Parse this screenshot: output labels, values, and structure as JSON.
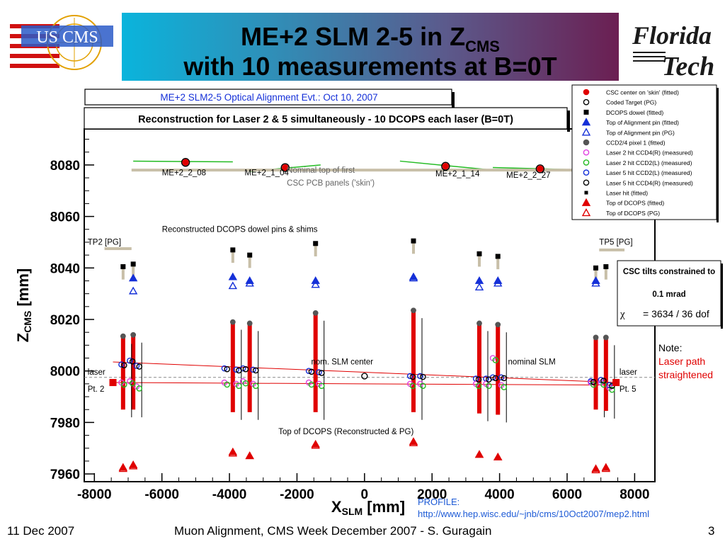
{
  "slide": {
    "title_line1": "ME+2 SLM 2-5 in Z",
    "title_line1_sub": "CMS",
    "title_line2": "with 10 measurements at B=0T",
    "logo_left_text": "US CMS",
    "logo_right_line1": "Florida",
    "logo_right_line2": "Tech",
    "footer_date": "11 Dec 2007",
    "footer_center": "Muon Alignment, CMS Week December 2007  - S. Guragain",
    "footer_page": "3",
    "profile_label": "PROFILE:",
    "profile_url": "http://www.hep.wisc.edu/~jnb/cms/10Oct2007/mep2.html",
    "note_title": "Note:",
    "note_text": "Laser path straightened",
    "colors": {
      "red": "#e00000",
      "blue": "#1530d8",
      "green": "#22bb22",
      "magenta": "#e040e0",
      "tan": "#c8bfa8",
      "black": "#000000"
    }
  },
  "chart_data": {
    "type": "scatter",
    "event_title": "ME+2 SLM2-5 Optical Alignment Evt.:  Oct 10, 2007",
    "subtitle": "Reconstruction for Laser 2 & 5 simultaneously - 10 DCOPS each laser (B=0T)",
    "xlabel": "X",
    "xlabel_sub": "SLM",
    "xlabel_unit": " [mm]",
    "ylabel": "Z",
    "ylabel_sub": "CMS",
    "ylabel_unit": " [mm]",
    "xlim": [
      -8300,
      8600
    ],
    "ylim": [
      7957,
      8094
    ],
    "xticks": [
      -8000,
      -6000,
      -4000,
      -2000,
      0,
      2000,
      4000,
      6000,
      8000
    ],
    "yticks": [
      7960,
      7980,
      8000,
      8020,
      8040,
      8060,
      8080
    ],
    "grid": true,
    "legend_position": "top-right",
    "legend": [
      {
        "label": "CSC center on 'skin' (fitted)",
        "marker": "circle",
        "color": "#e00000",
        "fill": true
      },
      {
        "label": "Coded Target (PG)",
        "marker": "circle",
        "color": "#000000",
        "fill": false
      },
      {
        "label": "DCOPS dowel (fitted)",
        "marker": "square",
        "color": "#000000",
        "fill": true
      },
      {
        "label": "Top of Alignment pin (fitted)",
        "marker": "triangle",
        "color": "#1530d8",
        "fill": true
      },
      {
        "label": "Top of Alignment pin (PG)",
        "marker": "triangle",
        "color": "#1530d8",
        "fill": false
      },
      {
        "label": "CCD2/4 pixel 1 (fitted)",
        "marker": "circle",
        "color": "#555555",
        "fill": true
      },
      {
        "label": "Laser 2 hit CCD4(R) (measured)",
        "marker": "circle",
        "color": "#e040e0",
        "fill": false
      },
      {
        "label": "Laser 2 hit CCD2(L) (measured)",
        "marker": "circle",
        "color": "#22bb22",
        "fill": false
      },
      {
        "label": "Laser 5 hit CCD2(L) (measured)",
        "marker": "circle",
        "color": "#1530d8",
        "fill": false
      },
      {
        "label": "Laser 5 hit CCD4(R) (measured)",
        "marker": "circle",
        "color": "#000000",
        "fill": false
      },
      {
        "label": "Laser hit (fitted)",
        "marker": "smallsquare",
        "color": "#000000",
        "fill": true
      },
      {
        "label": "Top of DCOPS (fitted)",
        "marker": "triangle",
        "color": "#e00000",
        "fill": true
      },
      {
        "label": "Top of DCOPS (PG)",
        "marker": "triangle",
        "color": "#e00000",
        "fill": false
      }
    ],
    "annotations": [
      {
        "text": "ME+2_2_08",
        "x": -6000,
        "y": 8076
      },
      {
        "text": "ME+2_1_04",
        "x": -3550,
        "y": 8076
      },
      {
        "text": "Nominal top of first",
        "x": -2300,
        "y": 8077
      },
      {
        "text": "CSC PCB panels ('skin')",
        "x": -2300,
        "y": 8072
      },
      {
        "text": "ME+2_1_14",
        "x": 2100,
        "y": 8075.5
      },
      {
        "text": "ME+2_2_27",
        "x": 4200,
        "y": 8075
      },
      {
        "text": "Reconstructed DCOPS dowel pins & shims",
        "x": -6000,
        "y": 8054
      },
      {
        "text": "TP2 [PG]",
        "x": -8200,
        "y": 8049
      },
      {
        "text": "TP5 [PG]",
        "x": 6950,
        "y": 8049
      },
      {
        "text": "nom. SLM center",
        "x": -1580,
        "y": 8002.5
      },
      {
        "text": "nominal SLM",
        "x": 4250,
        "y": 8002.5
      },
      {
        "text": "laser",
        "x": -8200,
        "y": 7998.5
      },
      {
        "text": "Pt. 2",
        "x": -8200,
        "y": 7992
      },
      {
        "text": "laser",
        "x": 7550,
        "y": 7998.5
      },
      {
        "text": "Pt. 5",
        "x": 7550,
        "y": 7992
      },
      {
        "text": "Top of DCOPS (Reconstructed & PG)",
        "x": -2550,
        "y": 7975.5
      }
    ],
    "info_box": {
      "line1": "CSC tilts constrained to",
      "line2": "0.1 mrad",
      "chi_label": "χ",
      "chi_value": "= 3634 / 36 dof"
    },
    "csc_centers": [
      {
        "x": -5300,
        "y": 8081
      },
      {
        "x": -2350,
        "y": 8079
      },
      {
        "x": 2400,
        "y": 8079.5
      },
      {
        "x": 5200,
        "y": 8078.5
      }
    ],
    "skin_panels": [
      {
        "x0": -6850,
        "x1": -3900,
        "y0": 8081.5,
        "y1": 8081.2
      },
      {
        "x0": -3400,
        "x1": -1300,
        "y0": 8077.5,
        "y1": 8080
      },
      {
        "x0": 1050,
        "x1": 3800,
        "y0": 8081.5,
        "y1": 8078
      },
      {
        "x0": 3800,
        "x1": 6700,
        "y0": 8079,
        "y1": 8078
      }
    ],
    "dcops": [
      {
        "x": -6850,
        "bar_top": 8014,
        "bar_bottom": 7985,
        "ccd": 8014,
        "dowel": 8041.5,
        "pin": 8036,
        "pin_pg": 8031,
        "top_fit": 7963.5,
        "top_pg": 7963
      },
      {
        "x": -3900,
        "bar_top": 8019,
        "bar_bottom": 7984,
        "ccd": 8019,
        "dowel": 8047,
        "pin": 8036.5,
        "pin_pg": 8033,
        "top_fit": 7968.5,
        "top_pg": 7968
      },
      {
        "x": -3400,
        "bar_top": 8018.5,
        "bar_bottom": 7984,
        "ccd": 8018.5,
        "dowel": 8045,
        "pin": 8035,
        "pin_pg": 8034,
        "top_fit": 7967,
        "top_pg": 7967
      },
      {
        "x": -1450,
        "bar_top": 8022.5,
        "bar_bottom": 7984,
        "ccd": 8022.5,
        "dowel": 8049.5,
        "pin": 8035,
        "pin_pg": 8033.5,
        "top_fit": 7971.5,
        "top_pg": 7971
      },
      {
        "x": 1450,
        "bar_top": 8023.5,
        "bar_bottom": 7984,
        "ccd": 8023.5,
        "dowel": 8050.5,
        "pin": 8036.5,
        "pin_pg": 8036,
        "top_fit": 7972.5,
        "top_pg": 7972
      },
      {
        "x": 3400,
        "bar_top": 8018.5,
        "bar_bottom": 7983.5,
        "ccd": 8018.5,
        "dowel": 8045.5,
        "pin": 8035,
        "pin_pg": 8032.5,
        "top_fit": 7967.5,
        "top_pg": 7967.5
      },
      {
        "x": 3950,
        "bar_top": 8018,
        "bar_bottom": 7983,
        "ccd": 8018,
        "dowel": 8044.5,
        "pin": 8035,
        "pin_pg": 8034,
        "top_fit": 7966.5,
        "top_pg": 7966.5
      },
      {
        "x": 6850,
        "bar_top": 8013,
        "bar_bottom": 7985,
        "ccd": 8013,
        "dowel": 8040,
        "pin": 8035,
        "pin_pg": 8034,
        "top_fit": 7962,
        "top_pg": 7961.5
      }
    ],
    "extra_dcops": [
      {
        "x": -7150,
        "bar_top": 8013.5,
        "bar_bottom": 7985,
        "ccd": 8013.5,
        "dowel": 8040.5,
        "top_fit": 7962.5,
        "top_pg": 7962
      },
      {
        "x": 7150,
        "bar_top": 8013,
        "bar_bottom": 7984.5,
        "ccd": 8013,
        "dowel": 8040.5,
        "top_fit": 7962.5,
        "top_pg": 7962
      }
    ],
    "laser_points": [
      {
        "x": -7450,
        "y": 7995.5
      },
      {
        "x": 7450,
        "y": 7995.5
      }
    ],
    "laser2_line": [
      [
        -7450,
        7995.5
      ],
      [
        7450,
        7994.5
      ]
    ],
    "laser5_line": [
      [
        -7450,
        8003.5
      ],
      [
        7450,
        7995.5
      ]
    ],
    "nominal_line_y": 7997.5,
    "tp2": {
      "x0": -7700,
      "x1": -6900,
      "y": 8047.5
    },
    "tp5": {
      "x0": 6950,
      "x1": 7700,
      "y": 8047
    },
    "hits_laser5": [
      {
        "x": -7200,
        "y": 8002.5
      },
      {
        "x": -6950,
        "y": 8004
      },
      {
        "x": -6750,
        "y": 8002
      },
      {
        "x": -4150,
        "y": 8001
      },
      {
        "x": -3800,
        "y": 8000.5
      },
      {
        "x": -3600,
        "y": 8001
      },
      {
        "x": -3300,
        "y": 8000.5
      },
      {
        "x": -1650,
        "y": 8000
      },
      {
        "x": -1350,
        "y": 7999.5
      },
      {
        "x": 1350,
        "y": 7998
      },
      {
        "x": 1650,
        "y": 7998
      },
      {
        "x": 3300,
        "y": 7997
      },
      {
        "x": 3600,
        "y": 7997
      },
      {
        "x": 3800,
        "y": 7997.5
      },
      {
        "x": 4050,
        "y": 7997.5
      },
      {
        "x": 6700,
        "y": 7996
      },
      {
        "x": 7000,
        "y": 7996.5
      },
      {
        "x": 7250,
        "y": 7994.5
      }
    ],
    "hits_laser2": [
      {
        "x": -7200,
        "y": 7995.5
      },
      {
        "x": -6950,
        "y": 7996
      },
      {
        "x": -6750,
        "y": 7994
      },
      {
        "x": -4150,
        "y": 7995.5
      },
      {
        "x": -3800,
        "y": 7995
      },
      {
        "x": -3600,
        "y": 7996
      },
      {
        "x": -3300,
        "y": 7995
      },
      {
        "x": -1650,
        "y": 7995.5
      },
      {
        "x": -1350,
        "y": 7995
      },
      {
        "x": 1350,
        "y": 7995
      },
      {
        "x": 1650,
        "y": 7995
      },
      {
        "x": 3300,
        "y": 7995
      },
      {
        "x": 3600,
        "y": 7995
      },
      {
        "x": 3800,
        "y": 8005
      },
      {
        "x": 4050,
        "y": 7994.5
      },
      {
        "x": 6700,
        "y": 7995.5
      },
      {
        "x": 7000,
        "y": 7995.5
      },
      {
        "x": 7250,
        "y": 7993.5
      }
    ],
    "nominal_center": {
      "x": 0,
      "y": 7998
    }
  }
}
